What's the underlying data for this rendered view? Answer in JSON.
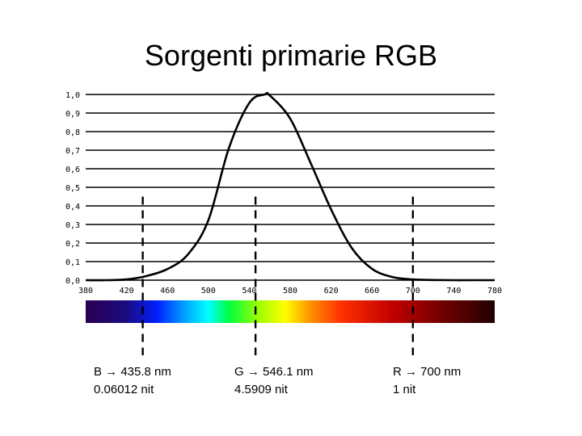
{
  "slide": {
    "title": "Sorgenti primarie RGB"
  },
  "chart_data": {
    "type": "line",
    "title": "Sorgenti primarie RGB",
    "xlabel": "",
    "ylabel": "",
    "xlim": [
      380,
      780
    ],
    "ylim": [
      0,
      1
    ],
    "grid": true,
    "x_ticks": [
      "380",
      "420",
      "460",
      "500",
      "540",
      "580",
      "620",
      "660",
      "700",
      "740",
      "780"
    ],
    "y_ticks": [
      "0,0",
      "0,1",
      "0,2",
      "0,3",
      "0,4",
      "0,5",
      "0,6",
      "0,7",
      "0,8",
      "0,9",
      "1,0"
    ],
    "series": [
      {
        "x": [
          380,
          400,
          420,
          440,
          460,
          480,
          500,
          520,
          540,
          555,
          560,
          580,
          600,
          620,
          640,
          660,
          680,
          700,
          720,
          740,
          760,
          780
        ],
        "y": [
          0.0,
          0.0,
          0.004,
          0.023,
          0.06,
          0.139,
          0.323,
          0.71,
          0.954,
          1.0,
          0.995,
          0.87,
          0.631,
          0.381,
          0.175,
          0.061,
          0.017,
          0.004,
          0.001,
          0.0,
          0.0,
          0.0
        ]
      }
    ],
    "markers": [
      {
        "x": 435.8,
        "y_top": 0.45
      },
      {
        "x": 546.1,
        "y_top": 0.45
      },
      {
        "x": 700,
        "y_top": 0.45
      }
    ],
    "spectrum_stops": [
      {
        "nm": 380,
        "color": "#2a0050"
      },
      {
        "nm": 420,
        "color": "#1a0a80"
      },
      {
        "nm": 450,
        "color": "#0020ff"
      },
      {
        "nm": 480,
        "color": "#00b0ff"
      },
      {
        "nm": 500,
        "color": "#00ffff"
      },
      {
        "nm": 520,
        "color": "#00ff40"
      },
      {
        "nm": 550,
        "color": "#a0ff00"
      },
      {
        "nm": 575,
        "color": "#ffff00"
      },
      {
        "nm": 600,
        "color": "#ff9000"
      },
      {
        "nm": 630,
        "color": "#ff3000"
      },
      {
        "nm": 680,
        "color": "#c00000"
      },
      {
        "nm": 730,
        "color": "#700000"
      },
      {
        "nm": 780,
        "color": "#200000"
      }
    ]
  },
  "annotations": {
    "b": {
      "line1": "B → 435.8 nm",
      "line2": "0.06012 nit"
    },
    "g": {
      "line1": "G → 546.1 nm",
      "line2": "4.5909 nit"
    },
    "r": {
      "line1": "R → 700 nm",
      "line2": "1 nit"
    }
  }
}
